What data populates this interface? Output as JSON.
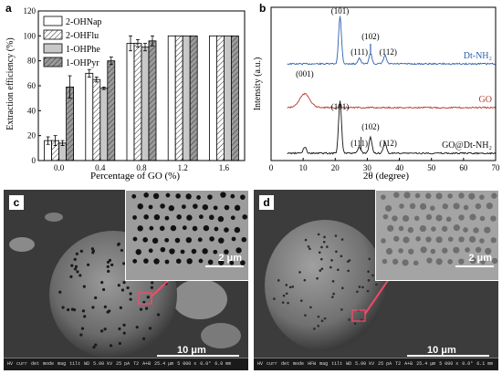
{
  "panels": {
    "a": {
      "letter": "a"
    },
    "b": {
      "letter": "b"
    },
    "c": {
      "letter": "c",
      "scale_main": "10 μm",
      "scale_inset": "2 μm",
      "databar": [
        "HV",
        "curr",
        "det",
        "mode",
        "mag",
        "tilt",
        "WD",
        "5.00 kV",
        "25 pA",
        "T2",
        "A+B",
        "25.4 μm",
        "5 000 x",
        "0.0°",
        "6.0 mm"
      ]
    },
    "d": {
      "letter": "d",
      "scale_main": "10 μm",
      "scale_inset": "2 μm",
      "databar": [
        "HV",
        "curr",
        "det",
        "mode",
        "HFW",
        "mag",
        "tilt",
        "WD",
        "5.00 kV",
        "25 pA",
        "T2",
        "A+B",
        "25.4 μm",
        "5 000 x",
        "0.0°",
        "6.1 mm"
      ]
    }
  },
  "chart_data": [
    {
      "type": "bar",
      "xlabel": "Percentage of GO (%)",
      "ylabel": "Extraction efficiency (%)",
      "ylim": [
        0,
        120
      ],
      "yticks": [
        0,
        20,
        40,
        60,
        80,
        100,
        120
      ],
      "categories": [
        "0.0",
        "0.4",
        "0.8",
        "1.2",
        "1.6"
      ],
      "legend_placement": "top-left",
      "series": [
        {
          "name": "2-OHNap",
          "values": [
            16,
            70,
            94,
            100,
            100
          ],
          "errors": [
            3,
            3,
            6,
            0,
            0
          ],
          "color": "#ffffff",
          "pattern": "none"
        },
        {
          "name": "2-OHFlu",
          "values": [
            16,
            65,
            94,
            100,
            100
          ],
          "errors": [
            4,
            2,
            3,
            0,
            0
          ],
          "color": "#ffffff",
          "pattern": "hatch"
        },
        {
          "name": "1-OHPhe",
          "values": [
            14,
            58,
            91,
            100,
            100
          ],
          "errors": [
            2,
            1,
            3,
            0,
            0
          ],
          "color": "#c8c8c8",
          "pattern": "none"
        },
        {
          "name": "1-OHPyr",
          "values": [
            59,
            80,
            96,
            100,
            100
          ],
          "errors": [
            9,
            3,
            4,
            0,
            0
          ],
          "color": "#9a9a9a",
          "pattern": "hatch"
        }
      ]
    },
    {
      "type": "line",
      "xlabel": "2θ (degree)",
      "ylabel": "Intensity (a.u.)",
      "xlim": [
        0,
        70
      ],
      "xticks": [
        0,
        10,
        20,
        30,
        40,
        50,
        60,
        70
      ],
      "series": [
        {
          "name": "Dt-NH₂",
          "color": "#2e5fb0",
          "peaks": [
            [
              21.5,
              1.0
            ],
            [
              27.5,
              0.12
            ],
            [
              31,
              0.22
            ],
            [
              35.5,
              0.18
            ]
          ]
        },
        {
          "name": "GO",
          "color": "#b33a2a",
          "peaks": [
            [
              10.5,
              0.5
            ]
          ]
        },
        {
          "name": "GO@Dt-NH₂",
          "color": "#111111",
          "peaks": [
            [
              10.5,
              0.12
            ],
            [
              21.5,
              1.0
            ],
            [
              27.5,
              0.12
            ],
            [
              31,
              0.3
            ],
            [
              35.5,
              0.2
            ]
          ]
        }
      ],
      "annotations": [
        "(101)",
        "(111)",
        "(102)",
        "(112)",
        "(001)",
        "(101)",
        "(111)",
        "(102)",
        "(112)"
      ]
    }
  ]
}
